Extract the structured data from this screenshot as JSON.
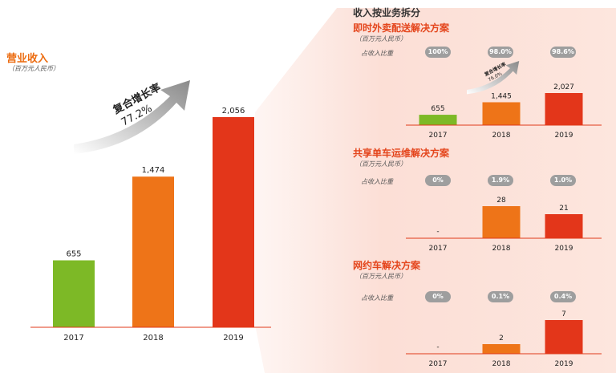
{
  "main": {
    "title": "营业收入",
    "unit": "（百万元人民币）",
    "cagr_label": "复合增长率",
    "cagr_value": "77.2%"
  },
  "breakdown_title": "收入按业务拆分",
  "share_label": "占收入比重",
  "colors": {
    "y2017": "#7db926",
    "y2018": "#ee7418",
    "y2019": "#e3361a",
    "pill": "#9e9e9e",
    "accent": "#ec6b0f"
  },
  "chart_data": [
    {
      "type": "bar",
      "id": "total",
      "title": "营业收入",
      "unit": "（百万元人民币）",
      "categories": [
        "2017",
        "2018",
        "2019"
      ],
      "values": [
        655,
        1474,
        2056
      ],
      "labels": [
        "655",
        "1,474",
        "2,056"
      ],
      "annotation": {
        "text": "复合增长率",
        "value": "77.2%"
      }
    },
    {
      "type": "bar",
      "id": "food",
      "title": "即时外卖配送解决方案",
      "unit": "（百万元人民币）",
      "categories": [
        "2017",
        "2018",
        "2019"
      ],
      "values": [
        655,
        1445,
        2027
      ],
      "labels": [
        "655",
        "1,445",
        "2,027"
      ],
      "shares": [
        "100%",
        "98.0%",
        "98.6%"
      ],
      "annotation": {
        "text": "复合增长率",
        "value": "76.0%"
      }
    },
    {
      "type": "bar",
      "id": "bike",
      "title": "共享单车运维解决方案",
      "unit": "（百万元人民币）",
      "categories": [
        "2017",
        "2018",
        "2019"
      ],
      "values": [
        0,
        28,
        21
      ],
      "labels": [
        "-",
        "28",
        "21"
      ],
      "shares": [
        "0%",
        "1.9%",
        "1.0%"
      ]
    },
    {
      "type": "bar",
      "id": "ride",
      "title": "网约车解决方案",
      "unit": "（百万元人民币）",
      "categories": [
        "2017",
        "2018",
        "2019"
      ],
      "values": [
        0,
        2,
        7
      ],
      "labels": [
        "-",
        "2",
        "7"
      ],
      "shares": [
        "0%",
        "0.1%",
        "0.4%"
      ]
    }
  ]
}
